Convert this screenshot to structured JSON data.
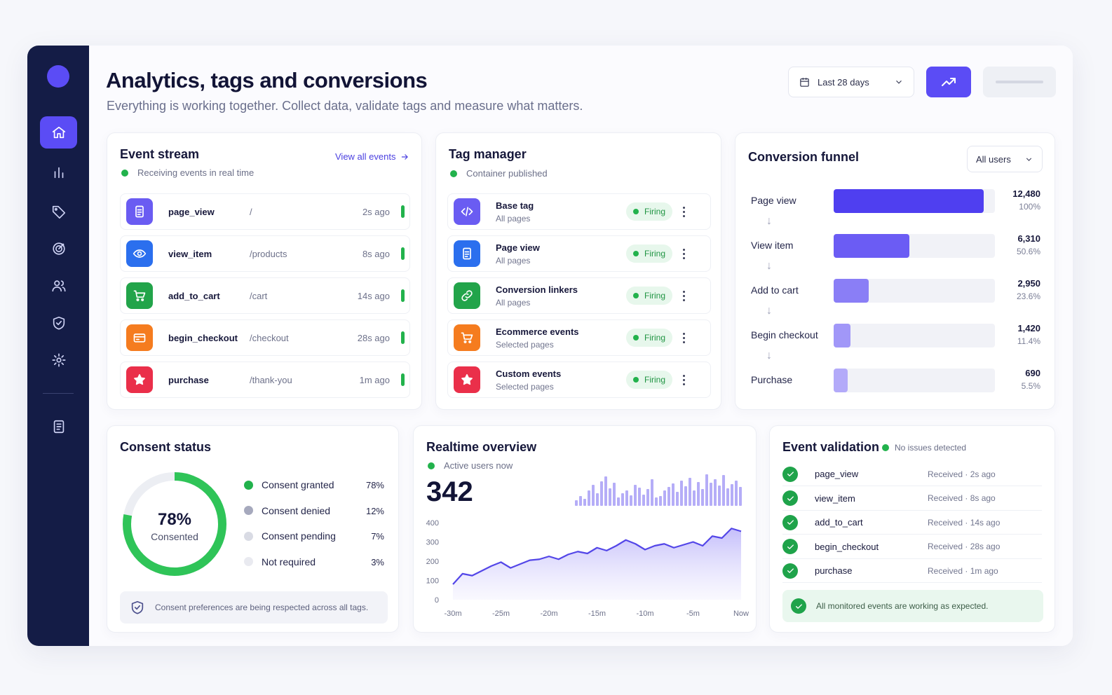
{
  "header": {
    "title": "Analytics, tags and conversions",
    "subtitle": "Everything is working together. Collect data, validate tags and measure what matters.",
    "date_range": "Last 28 days"
  },
  "sidebar": {
    "items": [
      {
        "icon": "home-icon",
        "active": true
      },
      {
        "icon": "bar-chart-icon"
      },
      {
        "icon": "tag-icon"
      },
      {
        "icon": "target-icon"
      },
      {
        "icon": "users-icon"
      },
      {
        "icon": "shield-icon"
      },
      {
        "icon": "gear-icon"
      },
      {
        "icon": "document-icon"
      }
    ]
  },
  "event_stream": {
    "title": "Event stream",
    "status": "Receiving events in real time",
    "link": "View all events",
    "events": [
      {
        "name": "page_view",
        "path": "/",
        "time": "2s ago",
        "color": "#6a5cf2",
        "icon": "page-icon"
      },
      {
        "name": "view_item",
        "path": "/products",
        "time": "8s ago",
        "color": "#2b6fee",
        "icon": "eye-icon"
      },
      {
        "name": "add_to_cart",
        "path": "/cart",
        "time": "14s ago",
        "color": "#22a44a",
        "icon": "cart-icon"
      },
      {
        "name": "begin_checkout",
        "path": "/checkout",
        "time": "28s ago",
        "color": "#f57c1f",
        "icon": "card-icon"
      },
      {
        "name": "purchase",
        "path": "/thank-you",
        "time": "1m ago",
        "color": "#ea2f4a",
        "icon": "star-icon"
      }
    ]
  },
  "tag_manager": {
    "title": "Tag manager",
    "status": "Container published",
    "tags": [
      {
        "name": "Base tag",
        "scope": "All pages",
        "status": "Firing",
        "color": "#6a5cf2",
        "icon": "code-icon"
      },
      {
        "name": "Page view",
        "scope": "All pages",
        "status": "Firing",
        "color": "#2b6fee",
        "icon": "page-icon"
      },
      {
        "name": "Conversion linkers",
        "scope": "All pages",
        "status": "Firing",
        "color": "#22a44a",
        "icon": "link-icon"
      },
      {
        "name": "Ecommerce events",
        "scope": "Selected pages",
        "status": "Firing",
        "color": "#f57c1f",
        "icon": "cart-icon"
      },
      {
        "name": "Custom events",
        "scope": "Selected pages",
        "status": "Firing",
        "color": "#ea2f4a",
        "icon": "star-icon"
      }
    ]
  },
  "conversion_funnel": {
    "title": "Conversion funnel",
    "filter": "All users",
    "steps": [
      {
        "label": "Page view",
        "value": "12,480",
        "percent": "100%",
        "fraction": 1.0,
        "color": "#4f3ff0"
      },
      {
        "label": "View item",
        "value": "6,310",
        "percent": "50.6%",
        "fraction": 0.506,
        "color": "#6b5cf4"
      },
      {
        "label": "Add to cart",
        "value": "2,950",
        "percent": "23.6%",
        "fraction": 0.236,
        "color": "#8a7ef6"
      },
      {
        "label": "Begin checkout",
        "value": "1,420",
        "percent": "11.4%",
        "fraction": 0.114,
        "color": "#a197f8"
      },
      {
        "label": "Purchase",
        "value": "690",
        "percent": "5.5%",
        "fraction": 0.055,
        "color": "#b3aaf9"
      }
    ]
  },
  "consent_status": {
    "title": "Consent status",
    "center_value": "78%",
    "center_label": "Consented",
    "items": [
      {
        "label": "Consent granted",
        "percent": "78%",
        "color": "#22b24c"
      },
      {
        "label": "Consent denied",
        "percent": "12%",
        "color": "#a6a9bd"
      },
      {
        "label": "Consent pending",
        "percent": "7%",
        "color": "#d9dbe4"
      },
      {
        "label": "Not required",
        "percent": "3%",
        "color": "#e9eaf0"
      }
    ],
    "note": "Consent preferences are being respected across all tags."
  },
  "realtime_overview": {
    "title": "Realtime overview",
    "status": "Active users now",
    "active_users": "342"
  },
  "chart_data": {
    "type": "area",
    "x": [
      -30,
      -29,
      -28,
      -27,
      -26,
      -25,
      -24,
      -23,
      -22,
      -21,
      -20,
      -19,
      -18,
      -17,
      -16,
      -15,
      -14,
      -13,
      -12,
      -11,
      -10,
      -9,
      -8,
      -7,
      -6,
      -5,
      -4,
      -3,
      -2,
      -1,
      0
    ],
    "x_tick_labels": [
      "-30m",
      "-25m",
      "-20m",
      "-15m",
      "-10m",
      "-5m",
      "Now"
    ],
    "y_ticks": [
      0,
      100,
      200,
      300,
      400
    ],
    "ylim": [
      0,
      400
    ],
    "values": [
      80,
      135,
      125,
      150,
      175,
      195,
      165,
      185,
      205,
      210,
      225,
      210,
      235,
      250,
      240,
      270,
      255,
      280,
      310,
      290,
      260,
      280,
      290,
      270,
      285,
      300,
      280,
      330,
      320,
      370,
      355
    ],
    "sparkline": [
      8,
      14,
      10,
      22,
      30,
      18,
      35,
      42,
      25,
      33,
      12,
      18,
      22,
      15,
      30,
      26,
      16,
      24,
      38,
      12,
      14,
      22,
      27,
      32,
      20,
      36,
      28,
      40,
      22,
      34,
      24,
      45,
      33,
      38,
      29,
      44,
      25,
      31,
      36,
      27
    ]
  },
  "event_validation": {
    "title": "Event validation",
    "badge": "No issues detected",
    "events": [
      {
        "name": "page_view",
        "status": "Received · 2s ago"
      },
      {
        "name": "view_item",
        "status": "Received · 8s ago"
      },
      {
        "name": "add_to_cart",
        "status": "Received · 14s ago"
      },
      {
        "name": "begin_checkout",
        "status": "Received · 28s ago"
      },
      {
        "name": "purchase",
        "status": "Received · 1m ago"
      }
    ],
    "summary": "All monitored events are working as expected."
  }
}
